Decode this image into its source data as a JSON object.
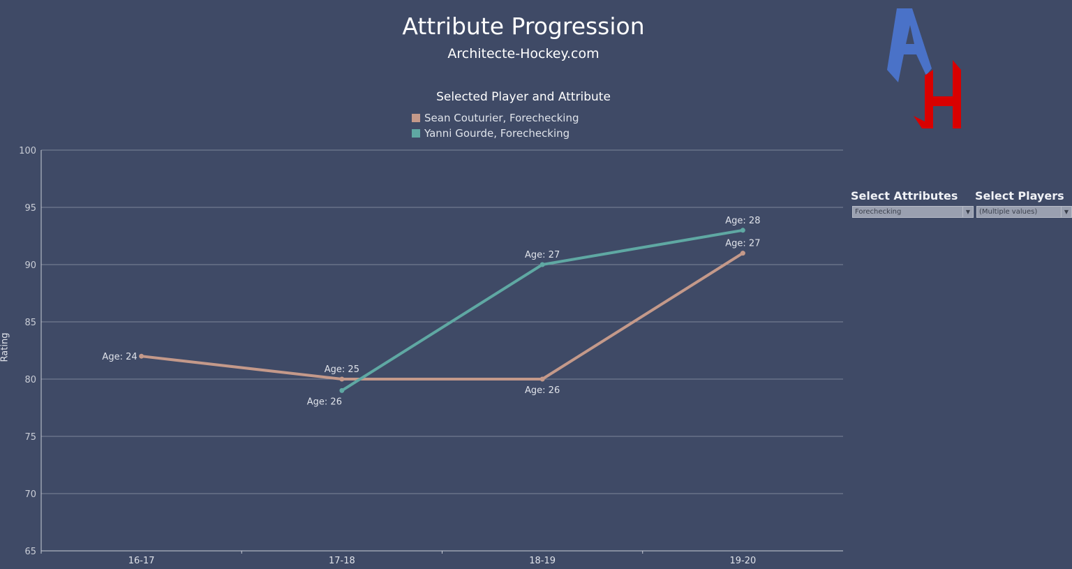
{
  "header": {
    "title": "Attribute Progression",
    "subtitle": "Architecte-Hockey.com"
  },
  "logo": {
    "text": "AH",
    "colors": {
      "A": "#4a72c8",
      "H": "#d90000"
    }
  },
  "filters": {
    "attributes": {
      "label": "Select  Attributes",
      "value": "Forechecking"
    },
    "players": {
      "label": "Select Players",
      "value": "(Multiple values)"
    }
  },
  "chart_data": {
    "type": "line",
    "legend_title": "Selected Player and Attribute",
    "legend_placement": "top",
    "categories": [
      "16-17",
      "17-18",
      "18-19",
      "19-20"
    ],
    "ylabel": "Rating",
    "ylim": [
      65,
      100
    ],
    "yticks": [
      65,
      70,
      75,
      80,
      85,
      90,
      95,
      100
    ],
    "grid": true,
    "series": [
      {
        "name": "Sean Couturier, Forechecking",
        "color": "#c4998a",
        "values": [
          82,
          80,
          80,
          91
        ],
        "labels": [
          "Age: 24",
          "Age: 25",
          "Age: 26",
          "Age: 27"
        ],
        "label_pos": [
          "left",
          "above",
          "below",
          "above"
        ]
      },
      {
        "name": "Yanni Gourde, Forechecking",
        "color": "#5fa8a3",
        "values": [
          null,
          79,
          90,
          93
        ],
        "labels": [
          null,
          "Age: 26",
          "Age: 27",
          "Age: 28"
        ],
        "label_pos": [
          null,
          "below-left",
          "above",
          "above"
        ]
      }
    ]
  }
}
